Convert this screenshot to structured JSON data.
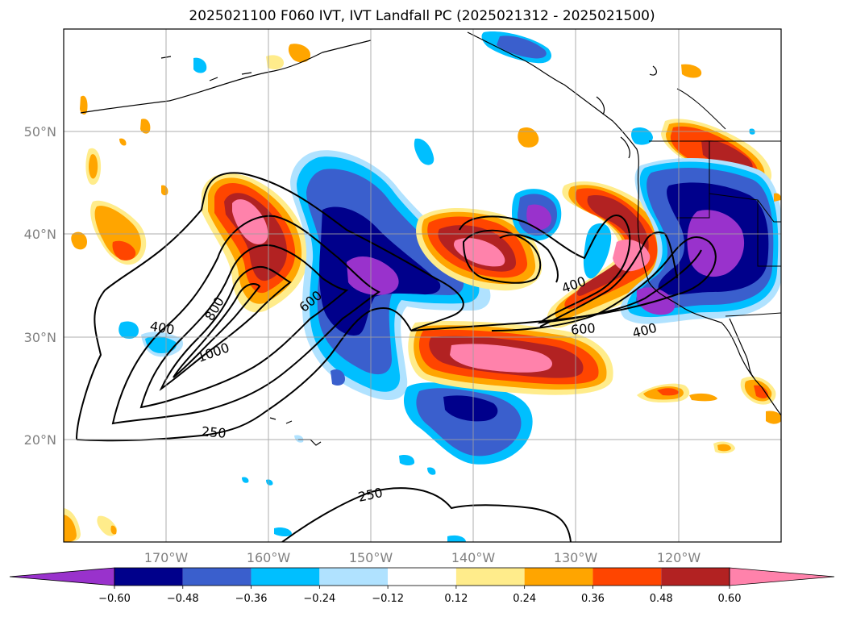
{
  "title": "2025021100 F060 IVT, IVT Landfall PC (2025021312 - 2025021500)",
  "chart_data": {
    "type": "contour-map",
    "title": "2025021100 F060 IVT, IVT Landfall PC (2025021312 - 2025021500)",
    "lon_range": [
      -180,
      -110
    ],
    "lat_range": [
      10,
      60
    ],
    "lon_ticks": [
      {
        "value": -170,
        "label": "170°W"
      },
      {
        "value": -160,
        "label": "160°W"
      },
      {
        "value": -150,
        "label": "150°W"
      },
      {
        "value": -140,
        "label": "140°W"
      },
      {
        "value": -130,
        "label": "130°W"
      },
      {
        "value": -120,
        "label": "120°W"
      }
    ],
    "lat_ticks": [
      {
        "value": 20,
        "label": "20°N"
      },
      {
        "value": 30,
        "label": "30°N"
      },
      {
        "value": 40,
        "label": "40°N"
      },
      {
        "value": 50,
        "label": "50°N"
      }
    ],
    "grid": true,
    "colorbar": {
      "placement": "bottom",
      "extend": "both",
      "colors": [
        "#9932cc",
        "#00008b",
        "#3a5fcd",
        "#00bfff",
        "#b0e2ff",
        "#ffffff",
        "#ffec8b",
        "#ffa500",
        "#ff4500",
        "#b22222",
        "#ff82ab"
      ],
      "labels": [
        "−0.60",
        "−0.48",
        "−0.36",
        "−0.24",
        "−0.12",
        "0.12",
        "0.24",
        "0.36",
        "0.48",
        "0.60"
      ]
    },
    "contour_labels": [
      {
        "text": "400",
        "lon": -170,
        "lat": 30.9
      },
      {
        "text": "800",
        "lon": -165.2,
        "lat": 32.9
      },
      {
        "text": "1000",
        "lon": -165.1,
        "lat": 29.1
      },
      {
        "text": "600",
        "lon": -156,
        "lat": 34.1
      },
      {
        "text": "250",
        "lon": -162.9,
        "lat": 20.7
      },
      {
        "text": "250",
        "lon": -147.9,
        "lat": 14.7
      },
      {
        "text": "400",
        "lon": -131.8,
        "lat": 35.2
      },
      {
        "text": "600",
        "lon": -130.8,
        "lat": 30.9
      },
      {
        "text": "400",
        "lon": -124.7,
        "lat": 30.9
      }
    ]
  }
}
